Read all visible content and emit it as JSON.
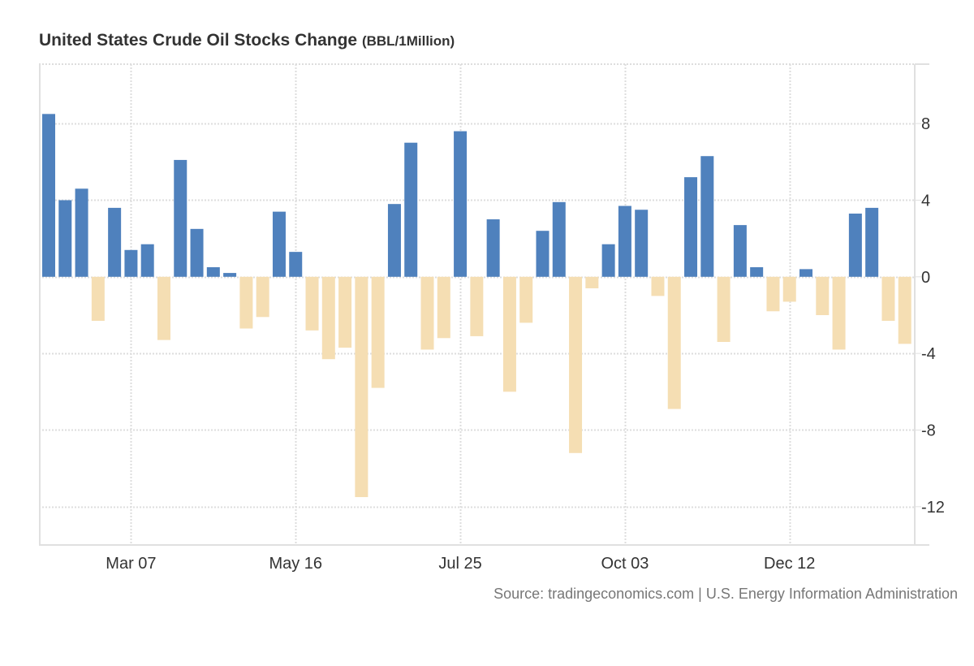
{
  "chart_data": {
    "type": "bar",
    "title": "United States Crude Oil Stocks Change",
    "unit": "(BBL/1Million)",
    "xlabel": "",
    "ylabel": "",
    "ylim": [
      -14,
      11.1
    ],
    "yticks": [
      8,
      4,
      0,
      -4,
      -8,
      -12
    ],
    "ytick_labels": [
      "8",
      "4",
      "0",
      "-4",
      "-8",
      "-12"
    ],
    "xtick_labels": [
      {
        "label": "Mar 07",
        "index": 5
      },
      {
        "label": "May 16",
        "index": 15
      },
      {
        "label": "Jul 25",
        "index": 25
      },
      {
        "label": "Oct 03",
        "index": 35
      },
      {
        "label": "Dec 12",
        "index": 45
      }
    ],
    "grid": true,
    "y_axis_side": "right",
    "colors": {
      "positive": "#4f81bd",
      "negative": "#f5deb3",
      "grid": "#dddddd",
      "axis": "#e0e0e0"
    },
    "values": [
      8.5,
      4.0,
      4.6,
      -2.3,
      3.6,
      1.4,
      1.7,
      -3.3,
      6.1,
      2.5,
      0.5,
      0.2,
      -2.7,
      -2.1,
      3.4,
      1.3,
      -2.8,
      -4.3,
      -3.7,
      -11.5,
      -5.8,
      3.8,
      7.0,
      -3.8,
      -3.2,
      7.6,
      -3.1,
      3.0,
      -6.0,
      -2.4,
      2.4,
      3.9,
      -9.2,
      -0.6,
      1.7,
      3.7,
      3.5,
      -1.0,
      -6.9,
      5.2,
      6.3,
      -3.4,
      2.7,
      0.5,
      -1.8,
      -1.3,
      0.4,
      -2.0,
      -3.8,
      3.3,
      3.6,
      -2.3,
      -3.5
    ]
  },
  "footer": {
    "source": "Source: tradingeconomics.com | U.S. Energy Information Administration"
  }
}
